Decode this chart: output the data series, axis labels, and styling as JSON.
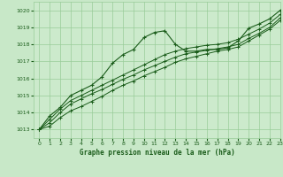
{
  "bg_color": "#c8e8c8",
  "plot_bg_color": "#cceacc",
  "grid_color": "#99cc99",
  "line_color": "#1a5c1a",
  "marker_color": "#1a5c1a",
  "text_color": "#1a5c1a",
  "title": "Graphe pression niveau de la mer (hPa)",
  "xlim": [
    -0.5,
    23
  ],
  "ylim": [
    1012.5,
    1020.5
  ],
  "yticks": [
    1013,
    1014,
    1015,
    1016,
    1017,
    1018,
    1019,
    1020
  ],
  "xticks": [
    0,
    1,
    2,
    3,
    4,
    5,
    6,
    7,
    8,
    9,
    10,
    11,
    12,
    13,
    14,
    15,
    16,
    17,
    18,
    19,
    20,
    21,
    22,
    23
  ],
  "series1_x": [
    0,
    1,
    2,
    3,
    4,
    5,
    6,
    7,
    8,
    9,
    10,
    11,
    12,
    13,
    14,
    15,
    16,
    17,
    18,
    19,
    20,
    21,
    22,
    23
  ],
  "series1_y": [
    1013.0,
    1013.8,
    1014.3,
    1015.0,
    1015.3,
    1015.6,
    1016.1,
    1016.9,
    1017.4,
    1017.7,
    1018.4,
    1018.7,
    1018.8,
    1018.0,
    1017.6,
    1017.6,
    1017.7,
    1017.7,
    1017.8,
    1018.2,
    1018.95,
    1019.2,
    1019.5,
    1020.0
  ],
  "series2_x": [
    0,
    1,
    2,
    3,
    4,
    5,
    6,
    7,
    8,
    9,
    10,
    11,
    12,
    13,
    14,
    15,
    16,
    17,
    18,
    19,
    20,
    21,
    22,
    23
  ],
  "series2_y": [
    1013.0,
    1013.6,
    1014.2,
    1014.7,
    1015.0,
    1015.3,
    1015.6,
    1015.9,
    1016.2,
    1016.5,
    1016.8,
    1017.1,
    1017.4,
    1017.6,
    1017.75,
    1017.85,
    1017.95,
    1018.0,
    1018.1,
    1018.3,
    1018.6,
    1018.9,
    1019.25,
    1019.75
  ],
  "series3_x": [
    0,
    1,
    2,
    3,
    4,
    5,
    6,
    7,
    8,
    9,
    10,
    11,
    12,
    13,
    14,
    15,
    16,
    17,
    18,
    19,
    20,
    21,
    22,
    23
  ],
  "series3_y": [
    1013.0,
    1013.4,
    1014.0,
    1014.5,
    1014.8,
    1015.1,
    1015.35,
    1015.65,
    1015.95,
    1016.2,
    1016.5,
    1016.75,
    1017.0,
    1017.25,
    1017.45,
    1017.55,
    1017.65,
    1017.75,
    1017.85,
    1018.0,
    1018.35,
    1018.65,
    1019.0,
    1019.55
  ],
  "series4_x": [
    0,
    1,
    2,
    3,
    4,
    5,
    6,
    7,
    8,
    9,
    10,
    11,
    12,
    13,
    14,
    15,
    16,
    17,
    18,
    19,
    20,
    21,
    22,
    23
  ],
  "series4_y": [
    1013.0,
    1013.2,
    1013.7,
    1014.1,
    1014.35,
    1014.65,
    1014.95,
    1015.3,
    1015.6,
    1015.85,
    1016.15,
    1016.4,
    1016.65,
    1016.95,
    1017.15,
    1017.3,
    1017.45,
    1017.6,
    1017.7,
    1017.85,
    1018.2,
    1018.55,
    1018.9,
    1019.4
  ]
}
